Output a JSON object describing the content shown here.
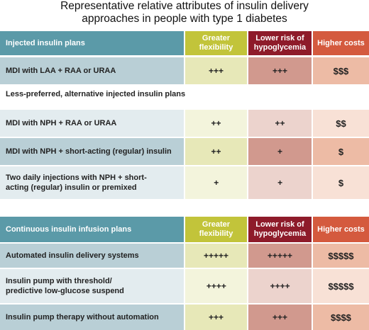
{
  "title": {
    "line1": "Representative relative attributes of insulin delivery",
    "line2": "approaches in people with type 1 diabetes"
  },
  "injected": {
    "header": {
      "plan": "Injected insulin plans",
      "flexibility": "Greater flexibility",
      "hypoglycemia": "Lower risk of hypoglycemia",
      "costs": "Higher costs"
    },
    "rows": [
      {
        "plan": "MDI with LAA + RAA or URAA",
        "flexibility": "+++",
        "hypoglycemia": "+++",
        "costs": "$$$"
      }
    ],
    "alternative_heading": "Less-preferred, alternative injected insulin plans",
    "alternative_rows": [
      {
        "plan": "MDI with NPH + RAA or URAA",
        "flexibility": "++",
        "hypoglycemia": "++",
        "costs": "$$"
      },
      {
        "plan": "MDI with NPH + short-acting (regular) insulin",
        "flexibility": "++",
        "hypoglycemia": "+",
        "costs": "$"
      },
      {
        "plan": "Two daily injections with NPH + short-acting (regular) insulin or premixed",
        "flexibility": "+",
        "hypoglycemia": "+",
        "costs": "$"
      }
    ]
  },
  "infusion": {
    "header": {
      "plan": "Continuous insulin infusion plans",
      "flexibility": "Greater flexibility",
      "hypoglycemia": "Lower risk of hypoglycemia",
      "costs": "Higher costs"
    },
    "rows": [
      {
        "plan": "Automated insulin delivery systems",
        "flexibility": "+++++",
        "hypoglycemia": "+++++",
        "costs": "$$$$$"
      },
      {
        "plan": "Insulin pump with threshold/ predictive low-glucose suspend",
        "flexibility": "++++",
        "hypoglycemia": "++++",
        "costs": "$$$$$"
      },
      {
        "plan": "Insulin pump therapy without automation",
        "flexibility": "+++",
        "hypoglycemia": "+++",
        "costs": "$$$$"
      }
    ]
  },
  "colors": {
    "plan_header": "#5b9aa8",
    "flexibility_header": "#c2c43a",
    "hypoglycemia_header": "#8e1b2a",
    "costs_header": "#d45a3e"
  }
}
